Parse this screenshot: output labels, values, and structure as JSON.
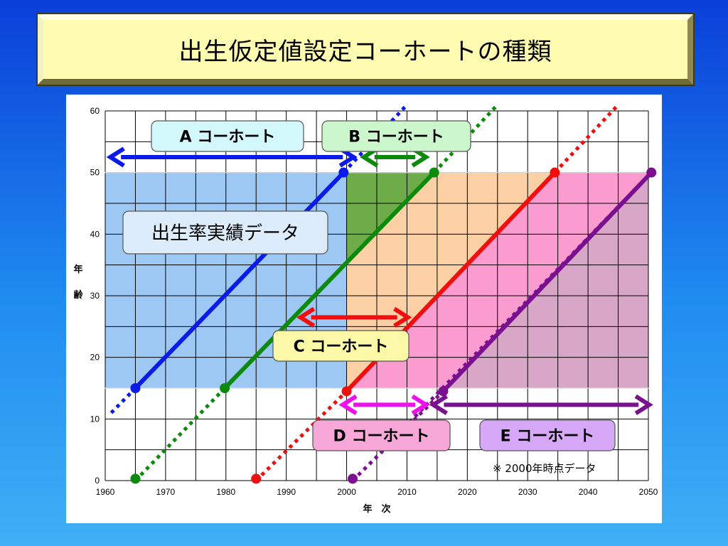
{
  "title": "出生仮定値設定コーホートの種類",
  "chart_data": {
    "type": "line",
    "x_ticks": [
      "1960",
      "1970",
      "1980",
      "1990",
      "2000",
      "2010",
      "2020",
      "2030",
      "2040",
      "2050"
    ],
    "y_ticks": [
      "0",
      "10",
      "20",
      "30",
      "40",
      "50",
      "60"
    ],
    "xlim": [
      1960,
      2050
    ],
    "ylim": [
      0,
      60
    ],
    "xlabel": "年　次",
    "ylabel_chars": [
      "年",
      "齢"
    ],
    "grid": true,
    "regions": [
      {
        "x": [
          1960,
          2000
        ],
        "y": [
          15,
          50
        ],
        "color": "#9ec8f4"
      },
      {
        "x": [
          2000,
          2050
        ],
        "y": [
          15,
          50
        ],
        "color": "#fbd0a4"
      }
    ],
    "series": [
      {
        "x": [
          1965,
          1999.5
        ],
        "y": [
          15,
          50
        ],
        "color": "#0a1ae8",
        "ext_start": [
          1961,
          11
        ],
        "ext_end": [
          2010,
          61
        ]
      },
      {
        "x": [
          1979.8,
          2014.5
        ],
        "y": [
          15,
          50
        ],
        "color": "#0c8a0c",
        "ext_start": [
          1965,
          0
        ],
        "ext_end": [
          2025,
          61
        ]
      },
      {
        "x": [
          2000,
          2034.5
        ],
        "y": [
          14.5,
          50
        ],
        "color": "#f00f0f",
        "ext_start": [
          1985,
          0
        ],
        "ext_end": [
          2045,
          61
        ]
      },
      {
        "x": [
          2016,
          2050.5
        ],
        "y": [
          14.5,
          50
        ],
        "color": "#7a1090",
        "ext_start": [
          2001,
          0
        ],
        "ext_end": [
          2006,
          5
        ]
      }
    ],
    "dots": [
      {
        "x": 1965,
        "y": 0.3,
        "color": "#0c8a0c"
      },
      {
        "x": 1985,
        "y": 0.3,
        "color": "#f00f0f"
      },
      {
        "x": 2001,
        "y": 0.3,
        "color": "#7a1090"
      }
    ],
    "arrows": [
      {
        "x1": 1960.5,
        "x2": 2001.5,
        "y": 52.5,
        "color": "#0a1ae8"
      },
      {
        "x1": 2002.5,
        "x2": 2013.5,
        "y": 52.5,
        "color": "#0c8a0c"
      },
      {
        "x1": 1992,
        "x2": 2010.5,
        "y": 26.5,
        "color": "#f00f0f"
      },
      {
        "x1": 1999,
        "x2": 2013.5,
        "y": 12.3,
        "color": "#ee10ee"
      },
      {
        "x1": 2014,
        "x2": 2050.5,
        "y": 12.3,
        "color": "#7a1090"
      }
    ],
    "labels": [
      {
        "id": "a",
        "text": "A コーホート",
        "fill": "#d2f8fb"
      },
      {
        "id": "b",
        "text": "B コーホート",
        "fill": "#ccf6cc"
      },
      {
        "id": "c",
        "text": "C コーホート",
        "fill": "#fbf8a8"
      },
      {
        "id": "d",
        "text": "D コーホート",
        "fill": "#f8a8d8"
      },
      {
        "id": "e",
        "text": "E コーホート",
        "fill": "#d8a8f8"
      },
      {
        "id": "actual",
        "text": "出生率実績データ",
        "fill": "#dcecfa"
      }
    ],
    "note": "※ 2000年時点データ"
  }
}
